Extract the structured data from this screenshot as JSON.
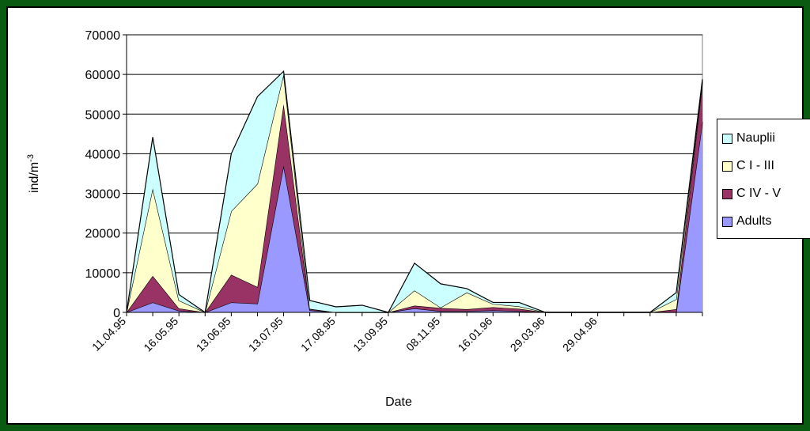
{
  "chart_data": {
    "type": "area",
    "stacked": true,
    "xlabel": "Date",
    "ylabel": "ind/m",
    "ylabel_sup": "-3",
    "ylim": [
      0,
      70000
    ],
    "yticks": [
      0,
      10000,
      20000,
      30000,
      40000,
      50000,
      60000,
      70000
    ],
    "x_ticklabels": [
      "11.04.95",
      "16.05.95",
      "13.06.95",
      "13.07.95",
      "17.08.95",
      "13.09.95",
      "08.11.95",
      "16.01.96",
      "29.03.96",
      "29.04.96"
    ],
    "grid": true,
    "legend_position": "right",
    "series": [
      {
        "name": "Adults",
        "color": "#9999ff",
        "values": [
          0,
          2500,
          400,
          0,
          2500,
          2200,
          37000,
          500,
          0,
          0,
          0,
          1000,
          300,
          300,
          500,
          300,
          0,
          0,
          0,
          0,
          0,
          0,
          48000
        ]
      },
      {
        "name": "C IV - V",
        "color": "#993366",
        "values": [
          0,
          6700,
          600,
          0,
          7000,
          4200,
          15500,
          300,
          0,
          0,
          0,
          700,
          800,
          500,
          800,
          600,
          0,
          0,
          0,
          0,
          0,
          800,
          10000
        ]
      },
      {
        "name": "C I - III",
        "color": "#ffffcc",
        "values": [
          0,
          22000,
          2000,
          0,
          16000,
          26000,
          7500,
          100,
          0,
          0,
          0,
          3800,
          100,
          4200,
          800,
          600,
          0,
          0,
          0,
          0,
          0,
          2500,
          500
        ]
      },
      {
        "name": "Nauplii",
        "color": "#ccffff",
        "values": [
          0,
          13000,
          1500,
          0,
          14500,
          22000,
          800,
          2100,
          1400,
          1800,
          0,
          6900,
          6000,
          1000,
          400,
          1000,
          0,
          0,
          0,
          0,
          0,
          1700,
          300
        ]
      }
    ]
  }
}
